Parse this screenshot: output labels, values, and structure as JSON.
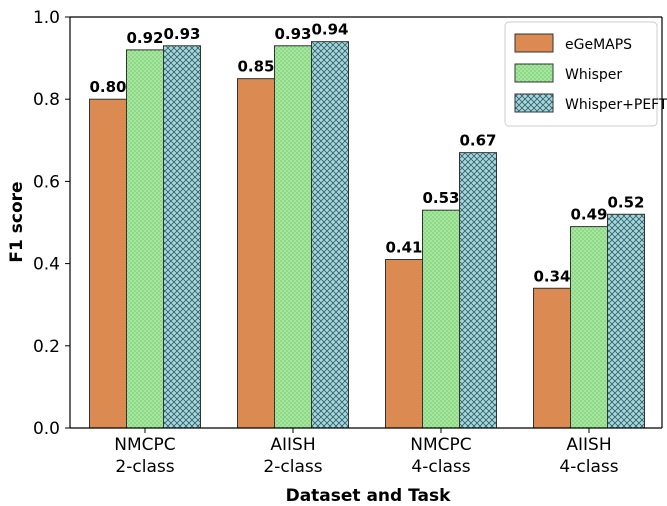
{
  "chart_data": {
    "type": "bar",
    "categories": [
      [
        "NMCPC",
        "2-class"
      ],
      [
        "AIISH",
        "2-class"
      ],
      [
        "NMCPC",
        "4-class"
      ],
      [
        "AIISH",
        "4-class"
      ]
    ],
    "series": [
      {
        "name": "eGeMAPS",
        "values": [
          0.8,
          0.85,
          0.41,
          0.34
        ],
        "color": "#db8a52",
        "pattern": "solid"
      },
      {
        "name": "Whisper",
        "values": [
          0.92,
          0.93,
          0.53,
          0.49
        ],
        "color": "#a3e89c",
        "pattern": "dots"
      },
      {
        "name": "Whisper+PEFT",
        "values": [
          0.93,
          0.94,
          0.67,
          0.52
        ],
        "color": "#a7d6dd",
        "pattern": "crosshatch"
      }
    ],
    "value_labels": [
      [
        "0.80",
        "0.85",
        "0.41",
        "0.34"
      ],
      [
        "0.92",
        "0.93",
        "0.53",
        "0.49"
      ],
      [
        "0.93",
        "0.94",
        "0.67",
        "0.52"
      ]
    ],
    "xlabel": "Dataset and Task",
    "ylabel": "F1 score",
    "ylim": [
      0.0,
      1.0
    ],
    "yticks": [
      0.0,
      0.2,
      0.4,
      0.6,
      0.8,
      1.0
    ],
    "ytick_labels": [
      "0.0",
      "0.2",
      "0.4",
      "0.6",
      "0.8",
      "1.0"
    ],
    "grid": false,
    "legend_position": "top-right"
  }
}
